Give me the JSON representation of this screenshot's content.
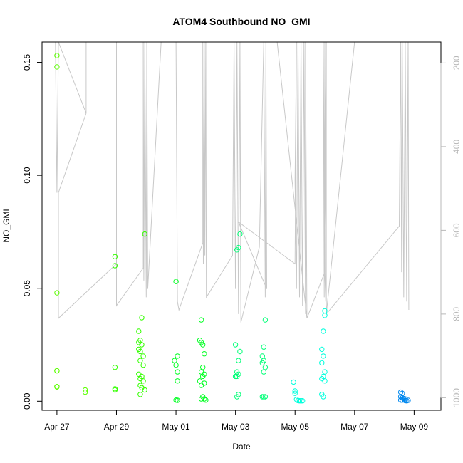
{
  "chart_data": {
    "type": "scatter",
    "title": "ATOM4 Southbound NO_GMI",
    "xlabel": "Date",
    "ylabel": "NO_GMI",
    "x_ticks": [
      "Apr 27",
      "Apr 29",
      "May 01",
      "May 03",
      "May 05",
      "May 07",
      "May 09"
    ],
    "x_tick_days": [
      0,
      2,
      4,
      6,
      8,
      10,
      12
    ],
    "x_range_days": [
      -0.5,
      12.9
    ],
    "y_ticks": [
      0.0,
      0.05,
      0.1,
      0.15
    ],
    "y_tick_labels": [
      "0.00",
      "0.05",
      "0.10",
      "0.15"
    ],
    "ylim": [
      -0.004,
      0.159
    ],
    "y2_ticks": [
      200,
      400,
      600,
      800,
      1000
    ],
    "y2_tick_labels": [
      "200",
      "400",
      "600",
      "800",
      "1000"
    ],
    "y2lim": [
      1030,
      150
    ],
    "y2_color": "#b8b8b8",
    "series": [
      {
        "color": "#5cff00",
        "points": [
          [
            0.0,
            0.153
          ],
          [
            0.0,
            0.148
          ],
          [
            0.0,
            0.048
          ],
          [
            0.0,
            0.0135
          ],
          [
            0.0,
            0.0135
          ],
          [
            0.0,
            0.0065
          ],
          [
            0.0,
            0.0063
          ],
          [
            0.95,
            0.005
          ],
          [
            0.95,
            0.004
          ]
        ]
      },
      {
        "color": "#33ff00",
        "points": [
          [
            1.95,
            0.064
          ],
          [
            1.95,
            0.06
          ],
          [
            1.95,
            0.015
          ],
          [
            1.95,
            0.0055
          ],
          [
            1.95,
            0.005
          ],
          [
            2.95,
            0.074
          ],
          [
            2.85,
            0.037
          ],
          [
            2.75,
            0.031
          ],
          [
            2.8,
            0.027
          ],
          [
            2.75,
            0.026
          ],
          [
            2.85,
            0.025
          ],
          [
            2.75,
            0.023
          ],
          [
            2.8,
            0.022
          ],
          [
            2.9,
            0.02
          ],
          [
            2.8,
            0.018
          ],
          [
            2.9,
            0.016
          ],
          [
            2.75,
            0.012
          ],
          [
            2.85,
            0.011
          ],
          [
            2.8,
            0.01
          ],
          [
            2.9,
            0.009
          ],
          [
            2.8,
            0.007
          ],
          [
            2.85,
            0.006
          ],
          [
            2.95,
            0.005
          ],
          [
            2.8,
            0.003
          ]
        ]
      },
      {
        "color": "#00ff22",
        "points": [
          [
            4.0,
            0.053
          ],
          [
            4.05,
            0.02
          ],
          [
            3.95,
            0.018
          ],
          [
            4.0,
            0.016
          ],
          [
            4.05,
            0.013
          ],
          [
            4.05,
            0.009
          ],
          [
            4.0,
            0.0005
          ],
          [
            4.05,
            0.0004
          ],
          [
            4.85,
            0.036
          ],
          [
            4.8,
            0.027
          ],
          [
            4.9,
            0.025
          ],
          [
            4.95,
            0.021
          ],
          [
            4.85,
            0.026
          ],
          [
            4.9,
            0.015
          ],
          [
            4.85,
            0.013
          ],
          [
            4.95,
            0.012
          ],
          [
            4.9,
            0.011
          ],
          [
            4.8,
            0.009
          ],
          [
            4.95,
            0.008
          ],
          [
            4.85,
            0.007
          ],
          [
            4.9,
            0.002
          ],
          [
            4.95,
            0.001
          ],
          [
            5.0,
            0.0005
          ],
          [
            4.85,
            0.001
          ]
        ]
      },
      {
        "color": "#00ff77",
        "points": [
          [
            6.15,
            0.074
          ],
          [
            6.1,
            0.068
          ],
          [
            6.05,
            0.067
          ],
          [
            6.0,
            0.025
          ],
          [
            6.15,
            0.022
          ],
          [
            6.1,
            0.018
          ],
          [
            6.05,
            0.013
          ],
          [
            6.1,
            0.012
          ],
          [
            6.05,
            0.011
          ],
          [
            6.0,
            0.011
          ],
          [
            6.1,
            0.003
          ],
          [
            6.05,
            0.002
          ],
          [
            7.0,
            0.036
          ],
          [
            6.95,
            0.024
          ],
          [
            6.9,
            0.02
          ],
          [
            6.95,
            0.018
          ],
          [
            6.9,
            0.017
          ],
          [
            7.0,
            0.015
          ],
          [
            6.95,
            0.013
          ],
          [
            6.9,
            0.002
          ],
          [
            6.95,
            0.002
          ],
          [
            7.0,
            0.002
          ]
        ]
      },
      {
        "color": "#00ffdd",
        "points": [
          [
            9.0,
            0.04
          ],
          [
            9.0,
            0.038
          ],
          [
            8.95,
            0.031
          ],
          [
            8.9,
            0.023
          ],
          [
            8.95,
            0.02
          ],
          [
            8.9,
            0.017
          ],
          [
            9.0,
            0.013
          ],
          [
            8.95,
            0.011
          ],
          [
            8.9,
            0.01
          ],
          [
            9.0,
            0.009
          ],
          [
            8.9,
            0.003
          ],
          [
            8.95,
            0.002
          ],
          [
            7.95,
            0.0085
          ],
          [
            8.0,
            0.0045
          ],
          [
            8.0,
            0.0035
          ],
          [
            8.05,
            0.0008
          ],
          [
            8.1,
            0.0003
          ],
          [
            8.15,
            0.0002
          ],
          [
            8.2,
            0.0002
          ],
          [
            8.25,
            0.0002
          ]
        ]
      },
      {
        "color": "#0088ee",
        "points": [
          [
            11.55,
            0.004
          ],
          [
            11.6,
            0.0035
          ],
          [
            11.55,
            0.002
          ],
          [
            11.6,
            0.0015
          ],
          [
            11.65,
            0.0012
          ],
          [
            11.7,
            0.001
          ],
          [
            11.6,
            0.0005
          ],
          [
            11.55,
            0.0005
          ],
          [
            11.7,
            0.0003
          ],
          [
            11.75,
            0.0002
          ],
          [
            11.8,
            0.0004
          ]
        ]
      }
    ],
    "pressure_trace": {
      "color": "#c8c8c8",
      "points": [
        [
          -0.05,
          150
        ],
        [
          0.0,
          510
        ],
        [
          0.05,
          150
        ],
        [
          0.98,
          320
        ],
        [
          0.98,
          150
        ],
        [
          0.98,
          320
        ],
        [
          0.05,
          510
        ],
        [
          0.05,
          810
        ],
        [
          2.0,
          680
        ],
        [
          2.0,
          150
        ],
        [
          2.0,
          780
        ],
        [
          2.9,
          690
        ],
        [
          2.9,
          150
        ],
        [
          2.92,
          720
        ],
        [
          2.95,
          150
        ],
        [
          3.0,
          760
        ],
        [
          3.02,
          150
        ],
        [
          3.05,
          740
        ],
        [
          3.5,
          150
        ],
        [
          4.0,
          150
        ],
        [
          4.05,
          770
        ],
        [
          4.1,
          790
        ],
        [
          4.9,
          630
        ],
        [
          4.9,
          150
        ],
        [
          4.92,
          680
        ],
        [
          4.95,
          150
        ],
        [
          4.97,
          660
        ],
        [
          5.0,
          150
        ],
        [
          5.02,
          760
        ],
        [
          5.9,
          660
        ],
        [
          5.95,
          150
        ],
        [
          6.0,
          740
        ],
        [
          6.02,
          520
        ],
        [
          6.05,
          150
        ],
        [
          6.1,
          800
        ],
        [
          6.15,
          150
        ],
        [
          6.18,
          820
        ],
        [
          6.8,
          640
        ],
        [
          6.95,
          150
        ],
        [
          7.0,
          760
        ],
        [
          7.02,
          150
        ],
        [
          7.05,
          740
        ],
        [
          6.1,
          580
        ],
        [
          8.0,
          680
        ],
        [
          8.05,
          150
        ],
        [
          8.0,
          480
        ],
        [
          8.05,
          740
        ],
        [
          8.1,
          150
        ],
        [
          8.15,
          760
        ],
        [
          8.2,
          150
        ],
        [
          8.25,
          780
        ],
        [
          8.3,
          150
        ],
        [
          8.35,
          800
        ],
        [
          8.35,
          150
        ],
        [
          8.4,
          810
        ],
        [
          7.4,
          150
        ],
        [
          8.4,
          810
        ],
        [
          9.0,
          700
        ],
        [
          8.95,
          150
        ],
        [
          8.98,
          760
        ],
        [
          9.0,
          150
        ],
        [
          9.03,
          770
        ],
        [
          8.98,
          660
        ],
        [
          9.05,
          150
        ],
        [
          9.05,
          800
        ],
        [
          10.0,
          150
        ],
        [
          9.05,
          800
        ],
        [
          11.5,
          590
        ],
        [
          11.55,
          150
        ],
        [
          11.58,
          700
        ],
        [
          11.6,
          150
        ],
        [
          11.65,
          760
        ],
        [
          11.7,
          150
        ],
        [
          11.75,
          770
        ],
        [
          11.8,
          150
        ],
        [
          11.82,
          790
        ]
      ]
    }
  }
}
